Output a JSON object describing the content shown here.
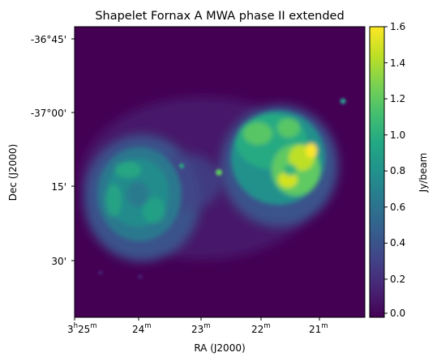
{
  "title": "Shapelet Fornax A MWA phase II extended",
  "xlabel": "RA (J2000)",
  "ylabel": "Dec (J2000)",
  "x_ticks": [
    {
      "main": "3",
      "sup1": "h",
      "mid": "25",
      "sup2": "m"
    },
    {
      "main": "24",
      "sup2": "m"
    },
    {
      "main": "23",
      "sup2": "m"
    },
    {
      "main": "22",
      "sup2": "m"
    },
    {
      "main": "21",
      "sup2": "m"
    }
  ],
  "y_ticks": [
    "-36°45'",
    "-37°00'",
    "15'",
    "30'"
  ],
  "colorbar": {
    "label": "Jy/beam",
    "ticks": [
      "1.6",
      "1.4",
      "1.2",
      "1.0",
      "0.8",
      "0.6",
      "0.4",
      "0.2",
      "0.0"
    ],
    "colormap": "viridis",
    "min": 0.0,
    "max": 1.6
  },
  "colors": {
    "background": "#440154",
    "accent": "#fde725"
  }
}
